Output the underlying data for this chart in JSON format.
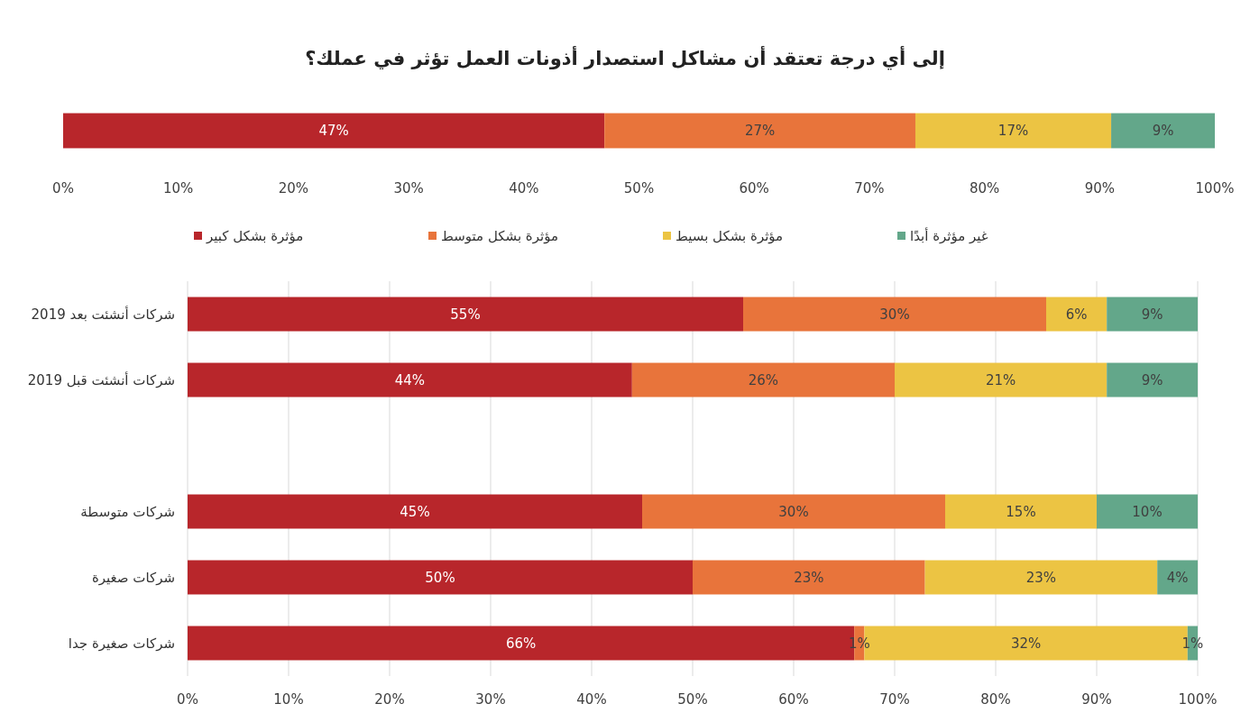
{
  "chart_data": [
    {
      "type": "bar",
      "orientation": "horizontal",
      "stacked": true,
      "title": "إلى أي درجة تعتقد أن مشاكل استصدار أذونات العمل تؤثر في عملك؟",
      "categories": [
        null
      ],
      "series": [
        {
          "color": "#b8262b",
          "values": [
            47
          ],
          "value_labels": [
            "47%"
          ]
        },
        {
          "color": "#e8743b",
          "values": [
            27
          ],
          "value_labels": [
            "27%"
          ]
        },
        {
          "color": "#ecc443",
          "values": [
            17
          ],
          "value_labels": [
            "17%"
          ]
        },
        {
          "color": "#63a78a",
          "values": [
            9
          ],
          "value_labels": [
            "9%"
          ]
        }
      ],
      "xlim": [
        0,
        100
      ],
      "xticks": [
        {
          "value": 0,
          "label": "0%"
        },
        {
          "value": 10,
          "label": "10%"
        },
        {
          "value": 20,
          "label": "20%"
        },
        {
          "value": 30,
          "label": "30%"
        },
        {
          "value": 40,
          "label": "40%"
        },
        {
          "value": 50,
          "label": "50%"
        },
        {
          "value": 60,
          "label": "60%"
        },
        {
          "value": 70,
          "label": "70%"
        },
        {
          "value": 80,
          "label": "80%"
        },
        {
          "value": 90,
          "label": "90%"
        },
        {
          "value": 100,
          "label": "100%"
        }
      ]
    },
    {
      "type": "bar",
      "orientation": "horizontal",
      "stacked": true,
      "categories": [
        "شركات أنشئت بعد 2019",
        "شركات أنشئت قبل 2019",
        null,
        "شركات متوسطة",
        "شركات صغيرة",
        "شركات صغيرة جدا"
      ],
      "series": [
        {
          "name": "مؤثرة بشكل كبير",
          "color": "#b8262b",
          "values": [
            55,
            44,
            null,
            45,
            50,
            66
          ],
          "value_labels": [
            "55%",
            "44%",
            null,
            "45%",
            "50%",
            "66%"
          ]
        },
        {
          "name": "مؤثرة بشكل متوسط",
          "color": "#e8743b",
          "values": [
            30,
            26,
            null,
            30,
            23,
            1
          ],
          "value_labels": [
            "30%",
            "26%",
            null,
            "30%",
            "23%",
            "1%"
          ]
        },
        {
          "name": "مؤثرة بشكل بسيط",
          "color": "#ecc443",
          "values": [
            6,
            21,
            null,
            15,
            23,
            32
          ],
          "value_labels": [
            "6%",
            "21%",
            null,
            "15%",
            "23%",
            "32%"
          ]
        },
        {
          "name": "غير مؤثرة أبدًا",
          "color": "#63a78a",
          "values": [
            9,
            9,
            null,
            10,
            4,
            1
          ],
          "value_labels": [
            "9%",
            "9%",
            null,
            "10%",
            "4%",
            "1%"
          ]
        }
      ],
      "xlim": [
        0,
        100
      ],
      "xticks": [
        {
          "value": 0,
          "label": "0%"
        },
        {
          "value": 10,
          "label": "10%"
        },
        {
          "value": 20,
          "label": "20%"
        },
        {
          "value": 30,
          "label": "30%"
        },
        {
          "value": 40,
          "label": "40%"
        },
        {
          "value": 50,
          "label": "50%"
        },
        {
          "value": 60,
          "label": "60%"
        },
        {
          "value": 70,
          "label": "70%"
        },
        {
          "value": 80,
          "label": "80%"
        },
        {
          "value": 90,
          "label": "90%"
        },
        {
          "value": 100,
          "label": "100%"
        }
      ],
      "grid": "x",
      "legend": "top"
    }
  ]
}
